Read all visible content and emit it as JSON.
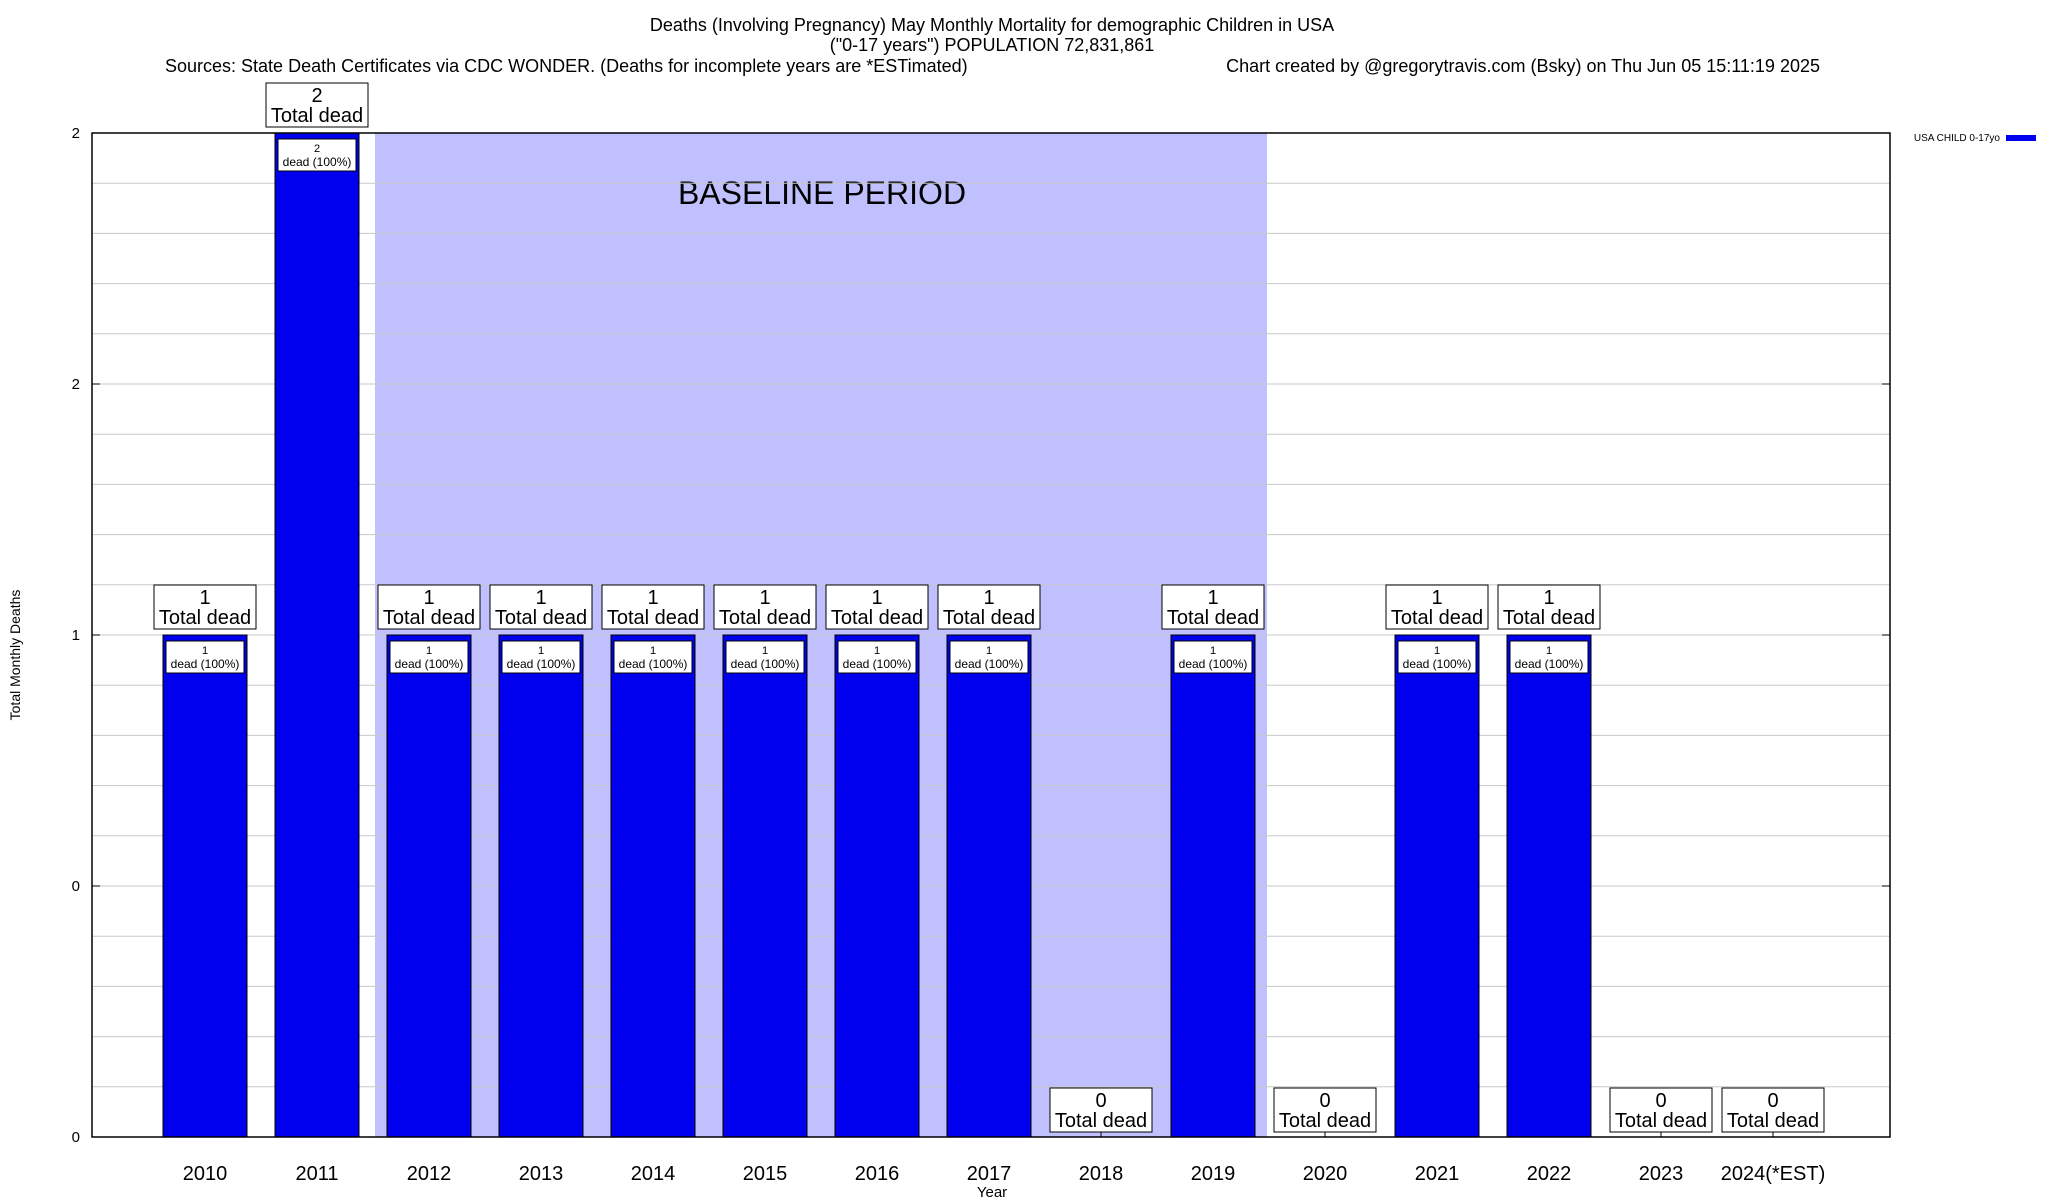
{
  "chart_data": {
    "type": "bar",
    "title": {
      "line1": "Deaths (Involving Pregnancy) May Monthly Mortality for demographic Children in USA",
      "line2": "(\"0-17 years\") POPULATION 72,831,861",
      "line3_left": "Sources: State Death Certificates via CDC WONDER. (Deaths for incomplete years are *ESTimated)",
      "line3_right": "Chart created by @gregorytravis.com (Bsky) on Thu Jun 05 15:11:19 2025"
    },
    "xlabel": "Year",
    "ylabel": "Total Monthly Deaths",
    "ylim": [
      0,
      2
    ],
    "ytick_labels": [
      "0",
      "0",
      "1",
      "2",
      "2"
    ],
    "grid": true,
    "categories": [
      "2010",
      "2011",
      "2012",
      "2013",
      "2014",
      "2015",
      "2016",
      "2017",
      "2018",
      "2019",
      "2020",
      "2021",
      "2022",
      "2023",
      "2024(*EST)"
    ],
    "series": [
      {
        "name": "USA CHILD 0-17yo",
        "color": "#0000ee",
        "values": [
          1,
          2,
          1,
          1,
          1,
          1,
          1,
          1,
          0,
          1,
          0,
          1,
          1,
          0,
          0
        ]
      }
    ],
    "total_label_suffix": "Total dead",
    "inner_label_suffix": "dead (100%)",
    "baseline_period": {
      "label": "BASELINE PERIOD",
      "start": "2012",
      "end": "2019",
      "color": "#c0c0ff"
    },
    "legend": {
      "placement": "top-right",
      "entries": [
        "USA CHILD 0-17yo"
      ]
    }
  }
}
